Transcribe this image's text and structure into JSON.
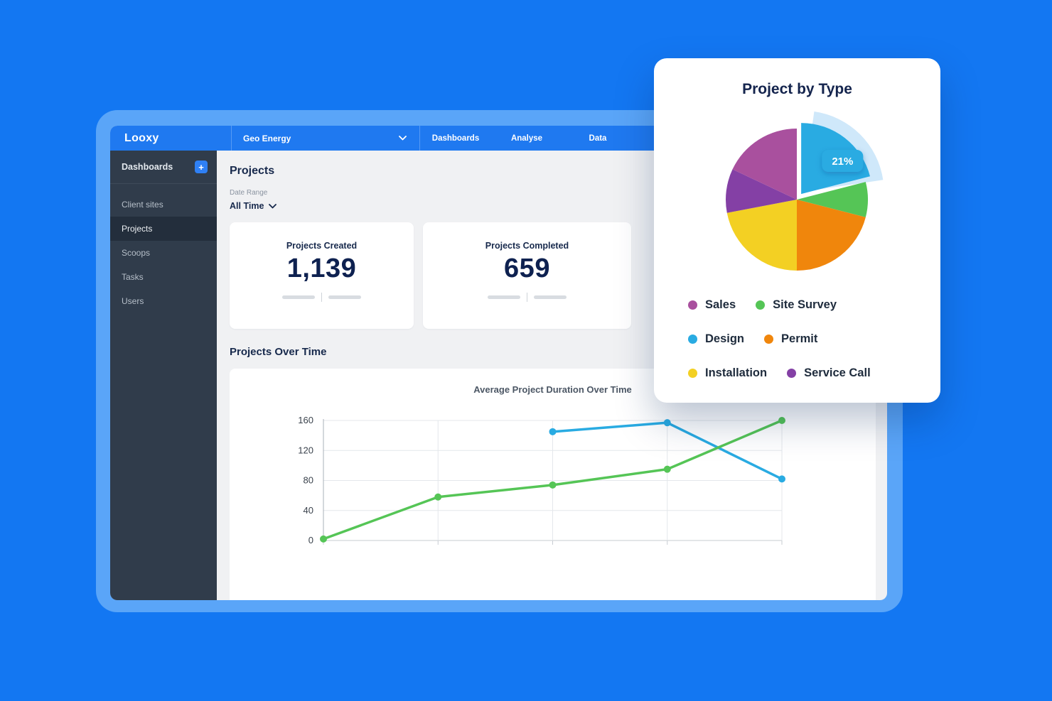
{
  "header": {
    "logo": "Looxy",
    "workspace_selector": "Geo Energy",
    "nav": [
      "Dashboards",
      "Analyse",
      "Data"
    ]
  },
  "sidebar": {
    "dashboards_label": "Dashboards",
    "add_dashboard_button": "+",
    "items": [
      {
        "label": "Client sites"
      },
      {
        "label": "Projects"
      },
      {
        "label": "Scoops"
      },
      {
        "label": "Tasks"
      },
      {
        "label": "Users"
      }
    ]
  },
  "main": {
    "page_title": "Projects",
    "date_range_label": "Date Range",
    "date_range_value": "All Time",
    "stat_cards": [
      {
        "label": "Projects Created",
        "value": "1,139"
      },
      {
        "label": "Projects Completed",
        "value": "659"
      }
    ],
    "section_title": "Projects Over Time"
  },
  "overlay": {
    "title": "Project by Type",
    "legend": [
      {
        "label": "Sales",
        "color": "#A9509E"
      },
      {
        "label": "Site Survey",
        "color": "#55C556"
      },
      {
        "label": "Design",
        "color": "#29ABE2"
      },
      {
        "label": "Permit",
        "color": "#F0860C"
      },
      {
        "label": "Installation",
        "color": "#F3D023"
      },
      {
        "label": "Service Call",
        "color": "#8440A5"
      }
    ]
  },
  "chart_data": [
    {
      "type": "pie",
      "title": "Project by Type",
      "labels": [
        "Design",
        "Site Survey",
        "Permit",
        "Installation",
        "Service Call",
        "Sales"
      ],
      "values": [
        21,
        8,
        21,
        22,
        10,
        18
      ],
      "colors": [
        "#29ABE2",
        "#55C556",
        "#F0860C",
        "#F3D023",
        "#8440A5",
        "#A9509E"
      ],
      "start_angle_deg": 0,
      "exploded_label": "Design",
      "halo_color": "#CFE8FA",
      "callout": {
        "text": "21%",
        "color": "#29ABE2"
      },
      "legend_position": "bottom"
    },
    {
      "type": "line",
      "title": "Average Project Duration Over Time",
      "x": [
        1,
        2,
        3,
        4,
        5
      ],
      "ylim": [
        0,
        160
      ],
      "yticks": [
        0,
        40,
        80,
        120,
        160
      ],
      "grid": true,
      "series": [
        {
          "name": "series-blue",
          "color": "#29ABE2",
          "values": [
            null,
            null,
            145,
            157,
            82
          ]
        },
        {
          "name": "series-green",
          "color": "#55C556",
          "values": [
            2,
            58,
            74,
            95,
            160
          ]
        }
      ]
    }
  ]
}
